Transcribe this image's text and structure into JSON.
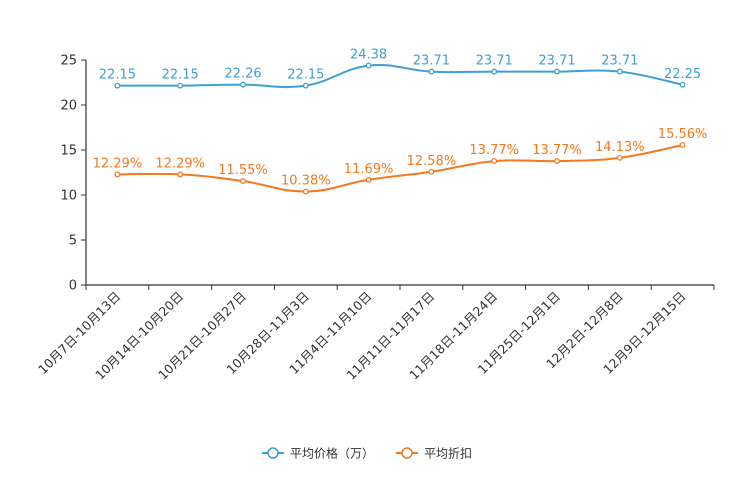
{
  "chart_data": {
    "type": "line",
    "categories": [
      "10月7日-10月13日",
      "10月14日-10月20日",
      "10月21日-10月27日",
      "10月28日-11月3日",
      "11月4日-11月10日",
      "11月11日-11月17日",
      "11月18日-11月24日",
      "11月25日-12月1日",
      "12月2日-12月8日",
      "12月9日-12月15日"
    ],
    "series": [
      {
        "name": "平均价格（万）",
        "color": "#3e9fd3",
        "values": [
          22.15,
          22.15,
          22.26,
          22.15,
          24.38,
          23.71,
          23.71,
          23.71,
          23.71,
          22.25
        ],
        "labels": [
          "22.15",
          "22.15",
          "22.26",
          "22.15",
          "24.38",
          "23.71",
          "23.71",
          "23.71",
          "23.71",
          "22.25"
        ]
      },
      {
        "name": "平均折扣",
        "color": "#f47920",
        "values": [
          12.29,
          12.29,
          11.55,
          10.38,
          11.69,
          12.58,
          13.77,
          13.77,
          14.13,
          15.56
        ],
        "labels": [
          "12.29%",
          "12.29%",
          "11.55%",
          "10.38%",
          "11.69%",
          "12.58%",
          "13.77%",
          "13.77%",
          "14.13%",
          "15.56%"
        ]
      }
    ],
    "yticks": [
      0,
      5,
      10,
      15,
      20,
      25
    ],
    "ylim": [
      0,
      25
    ],
    "legend_position": "bottom-center"
  }
}
